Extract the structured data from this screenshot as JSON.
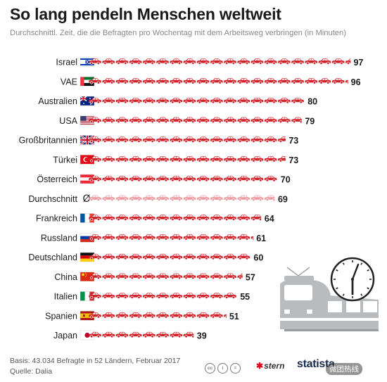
{
  "title": "So lang pendeln Menschen weltweit",
  "subtitle": "Durchschnittl. Zeit, die die Befragten pro Wochentag mit dem Arbeitsweg verbringen (in Minuten)",
  "footer": {
    "basis": "Basis: 43.034 Befragte in 52 Ländern, Februar 2017",
    "source": "Quelle: Dalia"
  },
  "logos": {
    "stern": "stern",
    "statista": "statista",
    "watermark": "微团热线"
  },
  "average_symbol": "Ø",
  "colors": {
    "car": "#d3232a",
    "car_average": "#ef9a9f",
    "window": "#ffffff",
    "train": "#b9bcbf",
    "clock": "#222222"
  },
  "icons": [
    "car-icon",
    "flag-icon",
    "train-icon",
    "clock-icon",
    "cc-icon"
  ],
  "chart_data": {
    "type": "bar",
    "categories": [
      "Israel",
      "VAE",
      "Australien",
      "USA",
      "Großbritannien",
      "Türkei",
      "Österreich",
      "Durchschnitt",
      "Frankreich",
      "Russland",
      "Deutschland",
      "China",
      "Italien",
      "Spanien",
      "Japan"
    ],
    "values": [
      97,
      96,
      80,
      79,
      73,
      73,
      70,
      69,
      64,
      61,
      60,
      57,
      55,
      51,
      39
    ],
    "flags": [
      "israel",
      "uae",
      "australia",
      "usa",
      "uk",
      "turkey",
      "austria",
      "average",
      "france",
      "russia",
      "germany",
      "china",
      "italy",
      "spain",
      "japan"
    ],
    "highlight": "Durchschnitt",
    "unit": "Minuten",
    "xlim": [
      0,
      100
    ],
    "grid": false,
    "legend": "none"
  }
}
